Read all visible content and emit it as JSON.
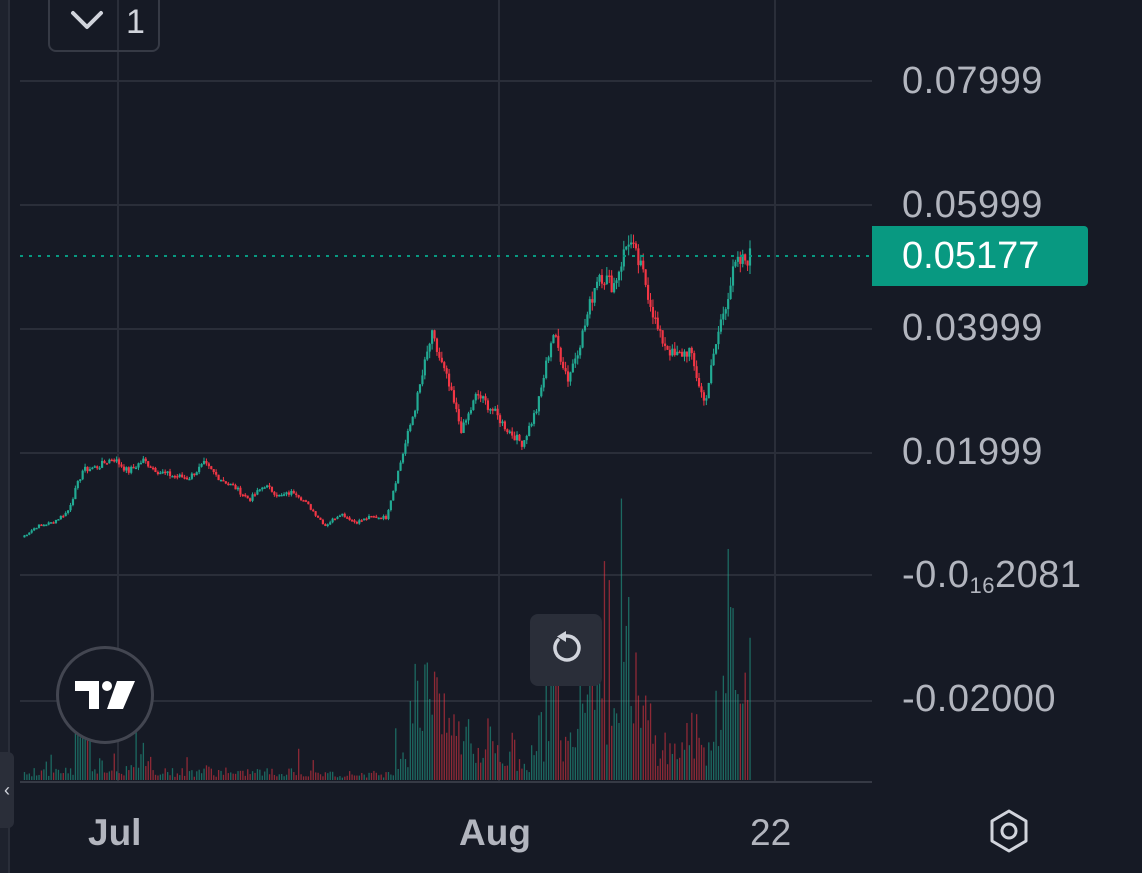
{
  "header": {
    "interval_value": "1"
  },
  "price_axis": {
    "labels": [
      "0.07999",
      "0.05999",
      "0.03999",
      "0.01999"
    ],
    "neg_label_1": {
      "prefix": "-0.0",
      "sub": "16",
      "rest": "2081"
    },
    "neg_label_2": "-0.02000",
    "current_price": "0.05177"
  },
  "time_axis": {
    "labels": [
      "Jul",
      "Aug",
      "22"
    ]
  },
  "colors": {
    "up": "#22ab94",
    "down": "#f23645",
    "background": "#161a25",
    "grid": "#2a2e39",
    "current_price": "#089981"
  },
  "icons": {
    "interval": "chevron-down-icon",
    "logo": "tradingview-logo-icon",
    "reset": "reset-chart-icon",
    "settings": "settings-icon",
    "collapse": "chevron-left-icon"
  },
  "chart_data": {
    "type": "line",
    "title": "",
    "x_unit": "bar index",
    "x": [
      0,
      6,
      12,
      18,
      24,
      30,
      36,
      42,
      48,
      54,
      60,
      66,
      72,
      78,
      84,
      90,
      96,
      102,
      108,
      114,
      120,
      126,
      132,
      138,
      144,
      150,
      156,
      162,
      168,
      174,
      180,
      186,
      192,
      198,
      204,
      210,
      216,
      222,
      228,
      234,
      240,
      246,
      252,
      258,
      264,
      270,
      276,
      282,
      288
    ],
    "series": [
      {
        "name": "",
        "values": [
          0.0064,
          0.0082,
          0.0088,
          0.0105,
          0.0172,
          0.0178,
          0.0192,
          0.017,
          0.0188,
          0.017,
          0.0163,
          0.016,
          0.0182,
          0.016,
          0.0145,
          0.0125,
          0.0148,
          0.013,
          0.0138,
          0.0112,
          0.0083,
          0.0103,
          0.0088,
          0.0097,
          0.0096,
          0.0189,
          0.0282,
          0.039,
          0.032,
          0.0235,
          0.0295,
          0.027,
          0.0238,
          0.0215,
          0.0275,
          0.0395,
          0.032,
          0.0395,
          0.0492,
          0.047,
          0.0545,
          0.0485,
          0.039,
          0.0355,
          0.0365,
          0.028,
          0.0405,
          0.05,
          0.0518
        ]
      }
    ],
    "volume": [
      3,
      4,
      4,
      5,
      30,
      8,
      6,
      5,
      9,
      5,
      4,
      4,
      5,
      4,
      3,
      4,
      4,
      3,
      5,
      3,
      3,
      3,
      3,
      3,
      3,
      14,
      40,
      60,
      28,
      22,
      16,
      18,
      10,
      8,
      22,
      45,
      18,
      60,
      88,
      35,
      60,
      30,
      18,
      14,
      22,
      16,
      40,
      90,
      38
    ],
    "current_value": 0.05177,
    "price_ticks": [
      0.07999,
      0.05999,
      0.03999,
      0.01999,
      -0.02
    ],
    "ylim": [
      -0.03,
      0.1
    ],
    "grid": true
  }
}
